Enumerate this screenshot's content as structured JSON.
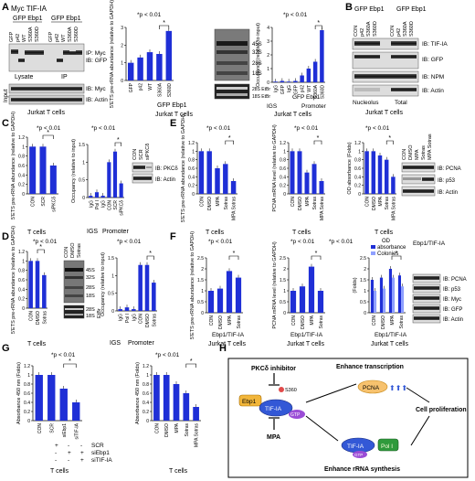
{
  "panels": {
    "A": {
      "letter": "A",
      "blot_header": "Myc TIF-IA",
      "blot_groups": [
        "GFP Ebp1",
        "GFP Ebp1"
      ],
      "lanes": [
        "GFP",
        "p42",
        "WT",
        "S360A",
        "S360D",
        "GFP",
        "p42",
        "WT",
        "S360A",
        "S360D"
      ],
      "ip_labels": [
        "IP: Myc",
        "IB: GFP"
      ],
      "section_labels": [
        "Lysate",
        "IP"
      ],
      "input_label": "Input",
      "input_ib": [
        "IB: Myc",
        "IB: Actin"
      ],
      "cell_label": "Jurkat T cells",
      "sig": "*p < 0.01",
      "gel_bands": [
        "45S",
        "32S",
        "28S",
        "18S",
        "28S EtBr",
        "18S EtBr"
      ],
      "chart1_group": "GFP Ebp1",
      "chart2_groups": [
        "IGS",
        "Promoter"
      ],
      "chart2_subgroup": "GFP Ebp1"
    },
    "B": {
      "letter": "B",
      "groups": [
        "GFP Ebp1",
        "GFP Ebp1"
      ],
      "lanes": [
        "CON",
        "p42",
        "S360A",
        "S360D",
        "CON",
        "p42",
        "S360A",
        "S360D"
      ],
      "ib": [
        "IB: TIF-IA",
        "IB: GFP",
        "IB: NPM",
        "IB: Actin"
      ],
      "sections": [
        "Nucleolus",
        "Total"
      ],
      "cell_label": "Jurkat T cells"
    },
    "C": {
      "letter": "C",
      "sig": "*p < 0.01",
      "lanes_blot": [
        "CON",
        "SCR",
        "siPKCδ"
      ],
      "ib": [
        "IB: PKCδ",
        "IB: Actin"
      ],
      "cell_label": "T cells",
      "group_labels": [
        "IGS",
        "Promoter"
      ]
    },
    "D": {
      "letter": "D",
      "sig": "*p < 0.01",
      "gel_lanes": [
        "CON",
        "DMSO",
        "Sotras"
      ],
      "gel_bands": [
        "45S",
        "32S",
        "28S",
        "18S",
        "28S",
        "18S"
      ],
      "etbr": "EtBr",
      "cell_label": "T cells",
      "group_labels": [
        "IGS",
        "Promoter"
      ]
    },
    "E": {
      "letter": "E",
      "sig": "*p < 0.01",
      "lanes_blot": [
        "CON",
        "DMSO",
        "MPA",
        "Sotras",
        "MPA Sotras"
      ],
      "ib": [
        "IB: PCNA",
        "IB: p53",
        "IB: Actin"
      ],
      "cell_label": "T cells"
    },
    "F": {
      "letter": "F",
      "sig": "*p < 0.01",
      "legend_title": "OD",
      "legend": [
        "absorbance",
        "Colonies"
      ],
      "blot_header": "Ebp1/TIF-IA",
      "ib": [
        "IB: PCNA",
        "IB: p53",
        "IB: Myc",
        "IB: GFP",
        "IB: Actin"
      ],
      "group_label": "Ebp1/TIF-IA",
      "cell_label": "Jurkat T cells"
    },
    "G": {
      "letter": "G",
      "sig": "*p < 0.01",
      "rows": [
        "SCR",
        "siEbp1",
        "siTIF-IA"
      ],
      "signs": [
        [
          "+",
          "-",
          "-"
        ],
        [
          "-",
          "+",
          "+"
        ],
        [
          "-",
          "-",
          "+"
        ]
      ],
      "cell_label": "T cells"
    },
    "H": {
      "letter": "H",
      "inhibitor": "PKCδ inhibitor",
      "site": "S360",
      "ebp1": "Ebp1",
      "tif": "TIF-IA",
      "gtp": "GTP",
      "mpa": "MPA",
      "pcna": "PCNA",
      "enhance_tx": "Enhance transcription",
      "prolif": "Cell proliferation",
      "enhance_rrna": "Enhance rRNA synthesis",
      "pol": "Pol I"
    }
  },
  "chart_data": [
    {
      "id": "A1",
      "type": "bar",
      "ylabel": "5'ETS pre-rRNA abundance (relative to GAPDH)",
      "categories": [
        "GFP",
        "p42",
        "WT",
        "S360A",
        "S360D"
      ],
      "values": [
        1.0,
        1.3,
        1.6,
        1.5,
        2.8
      ],
      "ylim": [
        0,
        3
      ],
      "yticks": [
        "0",
        "1",
        "2",
        "3"
      ]
    },
    {
      "id": "A2",
      "type": "bar",
      "ylabel": "Occupancy (relative to input)",
      "categories": [
        "IgG",
        "GFP",
        "IgG",
        "GFP",
        "p42",
        "WT",
        "S360A",
        "S360D"
      ],
      "values": [
        0.05,
        0.1,
        0.05,
        0.1,
        0.5,
        1.0,
        1.5,
        3.8
      ],
      "ylim": [
        0,
        4
      ],
      "yticks": [
        "0",
        "1",
        "2",
        "3",
        "4"
      ]
    },
    {
      "id": "C1",
      "type": "bar",
      "ylabel": "5'ETS pre-rRNA abundance (relative to GAPDH)",
      "categories": [
        "CON",
        "SCR",
        "siPKCδ"
      ],
      "values": [
        1.0,
        1.0,
        0.6
      ],
      "ylim": [
        0,
        1.2
      ],
      "yticks": [
        "0",
        "0.2",
        "0.4",
        "0.6",
        "0.8",
        "1",
        "1.2"
      ]
    },
    {
      "id": "C2",
      "type": "bar",
      "ylabel": "Occupancy (relative to input)",
      "categories": [
        "IgG",
        "Pol I",
        "IgG",
        "CON",
        "SCR",
        "siPKCδ"
      ],
      "values": [
        0.05,
        0.15,
        0.05,
        1.0,
        1.3,
        0.4
      ],
      "ylim": [
        0,
        1.5
      ],
      "yticks": [
        "0",
        "0.5",
        "1",
        "1.5"
      ]
    },
    {
      "id": "D1",
      "type": "bar",
      "ylabel": "5'ETS pre-rRNA abundance (relative to GAPDH)",
      "categories": [
        "CON",
        "DMSO",
        "Sotras"
      ],
      "values": [
        1.0,
        1.0,
        0.7
      ],
      "ylim": [
        0,
        1.2
      ],
      "yticks": [
        "0",
        "0.2",
        "0.4",
        "0.6",
        "0.8",
        "1",
        "1.2"
      ]
    },
    {
      "id": "D2",
      "type": "bar",
      "ylabel": "Occupancy (relative to input)",
      "categories": [
        "IgG",
        "Pol I",
        "IgG",
        "CON",
        "DMSO",
        "Sotras"
      ],
      "values": [
        0.05,
        0.1,
        0.05,
        1.3,
        1.3,
        0.8
      ],
      "ylim": [
        0,
        1.5
      ],
      "yticks": [
        "0",
        "0.5",
        "1",
        "1.5"
      ]
    },
    {
      "id": "E1",
      "type": "bar",
      "ylabel": "5'ETS pre-rRNA abundance (relative to GAPDH)",
      "categories": [
        "CON",
        "DMSO",
        "MPA",
        "Sotras",
        "MPA Sotras"
      ],
      "values": [
        1.0,
        1.0,
        0.6,
        0.7,
        0.3
      ],
      "ylim": [
        0,
        1.2
      ],
      "yticks": [
        "0",
        "0.2",
        "0.4",
        "0.6",
        "0.8",
        "1",
        "1.2"
      ]
    },
    {
      "id": "E2",
      "type": "bar",
      "ylabel": "PCNA mRNA level (relative to GAPDH)",
      "categories": [
        "CON",
        "DMSO",
        "MPA",
        "Sotras",
        "MPA Sotras"
      ],
      "values": [
        1.0,
        1.0,
        0.5,
        0.7,
        0.3
      ],
      "ylim": [
        0,
        1.2
      ],
      "yticks": [
        "0",
        "0.2",
        "0.4",
        "0.6",
        "0.8",
        "1",
        "1.2"
      ]
    },
    {
      "id": "E3",
      "type": "bar",
      "ylabel": "OD absorbance (Folds)",
      "categories": [
        "CON",
        "DMSO",
        "MPA",
        "Sotras",
        "MPA Sotras"
      ],
      "values": [
        1.0,
        1.0,
        0.9,
        0.8,
        0.4
      ],
      "ylim": [
        0,
        1.2
      ],
      "yticks": [
        "0",
        "0.2",
        "0.4",
        "0.6",
        "0.8",
        "1",
        "1.2"
      ]
    },
    {
      "id": "F1",
      "type": "bar",
      "ylabel": "5'ETS pre-rRNA abundance (relative to GAPDH)",
      "categories": [
        "CON",
        "DMSO",
        "MPA",
        "Sotras"
      ],
      "values": [
        1.0,
        1.1,
        1.9,
        1.6
      ],
      "ylim": [
        0,
        2.5
      ],
      "yticks": [
        "0",
        "0.5",
        "1",
        "1.5",
        "2",
        "2.5"
      ]
    },
    {
      "id": "F2",
      "type": "bar",
      "ylabel": "PCNA mRNA level (relative to GAPDH)",
      "categories": [
        "CON",
        "DMSO",
        "MPA",
        "Sotras"
      ],
      "values": [
        1.0,
        1.2,
        2.1,
        1.0
      ],
      "ylim": [
        0,
        2.5
      ],
      "yticks": [
        "0",
        "0.5",
        "1",
        "1.5",
        "2",
        "2.5"
      ]
    },
    {
      "id": "F3",
      "type": "bar",
      "ylabel": "(Folds)",
      "categories": [
        "CON",
        "DMSO",
        "MPA",
        "Sotras"
      ],
      "series": [
        {
          "name": "absorbance",
          "values": [
            1.5,
            1.6,
            2.0,
            1.7
          ]
        },
        {
          "name": "Colonies",
          "values": [
            1.0,
            1.1,
            1.6,
            1.2
          ]
        }
      ],
      "ylim": [
        0,
        2.5
      ],
      "yticks": [
        "0",
        "0.5",
        "1",
        "1.5",
        "2",
        "2.5"
      ]
    },
    {
      "id": "G1",
      "type": "bar",
      "ylabel": "Absorbance 450 nm (Folds)",
      "categories": [
        "CON",
        "SCR",
        "siEbp1",
        "siTIF-IA"
      ],
      "values": [
        1.0,
        1.0,
        0.7,
        0.4
      ],
      "ylim": [
        0,
        1.2
      ],
      "yticks": [
        "0",
        "0.2",
        "0.4",
        "0.6",
        "0.8",
        "1",
        "1.2"
      ]
    },
    {
      "id": "G2",
      "type": "bar",
      "ylabel": "Absorbance 450 nm (Folds)",
      "categories": [
        "CON",
        "DMSO",
        "MPA",
        "Sotras",
        "MPA Sotras"
      ],
      "values": [
        1.0,
        1.0,
        0.8,
        0.6,
        0.3
      ],
      "ylim": [
        0,
        1.2
      ],
      "yticks": [
        "0",
        "0.2",
        "0.4",
        "0.6",
        "0.8",
        "1",
        "1.2"
      ]
    }
  ]
}
